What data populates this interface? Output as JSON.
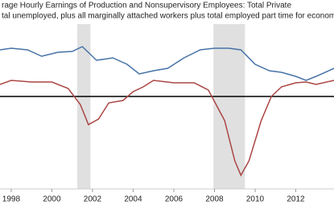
{
  "chart_data": {
    "type": "line",
    "xlim": [
      1997.45,
      2013.88
    ],
    "xticks": [
      1998,
      2000,
      2002,
      2004,
      2006,
      2008,
      2010,
      2012
    ],
    "ylim": [
      -5.75,
      4.5
    ],
    "hline": 0,
    "recessions": [
      [
        2001.25,
        2001.9
      ],
      [
        2007.95,
        2009.5
      ]
    ],
    "series": [
      {
        "name": "rage Hourly Earnings of Production and Nonsupervisory Employees: Total Private",
        "color": "#4572a7",
        "x": [
          1997.45,
          1998,
          1998.8,
          1999.5,
          2000.3,
          2001,
          2001.5,
          2002.2,
          2003,
          2003.7,
          2004.3,
          2005,
          2005.7,
          2006.5,
          2007.3,
          2008,
          2008.7,
          2009.3,
          2010,
          2010.7,
          2011.3,
          2012,
          2012.5,
          2013,
          2013.88
        ],
        "values": [
          2.9,
          3.0,
          2.9,
          2.5,
          2.75,
          2.8,
          3.1,
          2.25,
          2.4,
          2.0,
          1.4,
          1.6,
          1.75,
          2.4,
          2.9,
          3.0,
          3.0,
          2.9,
          2.0,
          1.6,
          1.5,
          1.25,
          1.0,
          1.25,
          1.75
        ]
      },
      {
        "name": "tal unemployed, plus all marginally attached workers plus total employed part time for economic",
        "color": "#aa4643",
        "x": [
          1997.45,
          1998,
          1999,
          2000,
          2000.8,
          2001.4,
          2001.8,
          2002.3,
          2002.8,
          2003.5,
          2004,
          2004.5,
          2005,
          2006,
          2007,
          2007.7,
          2008.5,
          2009,
          2009.3,
          2009.7,
          2010.3,
          2010.8,
          2011.3,
          2012,
          2012.5,
          2013,
          2013.88
        ],
        "values": [
          0.75,
          1.0,
          0.9,
          0.9,
          0.5,
          -0.5,
          -1.75,
          -1.4,
          -0.4,
          -0.25,
          0.3,
          0.6,
          1.0,
          0.85,
          0.85,
          0.4,
          -1.5,
          -4.0,
          -4.9,
          -4.0,
          -1.5,
          0.0,
          0.6,
          0.85,
          0.9,
          0.75,
          1.0
        ]
      }
    ]
  }
}
